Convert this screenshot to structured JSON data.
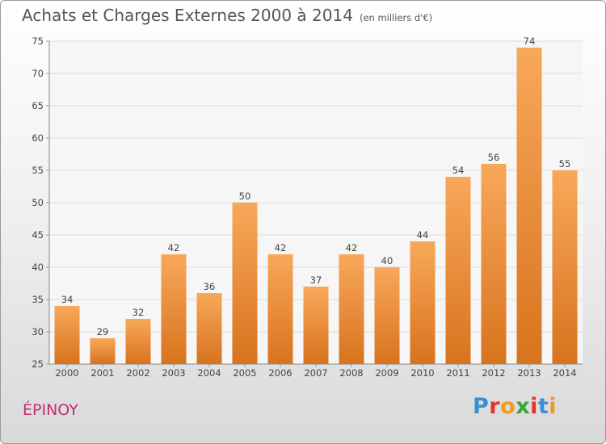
{
  "header": {
    "title": "Achats et Charges Externes 2000 à 2014",
    "unit": "(en milliers d'€)"
  },
  "footer": {
    "city": "ÉPINOY",
    "logo": "Proxiti"
  },
  "logo_letters": [
    {
      "ch": "P",
      "color": "#3a8fd0"
    },
    {
      "ch": "r",
      "color": "#e8322e"
    },
    {
      "ch": "o",
      "color": "#f29a1e"
    },
    {
      "ch": "x",
      "color": "#3aa635"
    },
    {
      "ch": "i",
      "color": "#e8322e"
    },
    {
      "ch": "t",
      "color": "#3a8fd0"
    },
    {
      "ch": "i",
      "color": "#f29a1e"
    }
  ],
  "chart_data": {
    "type": "bar",
    "title": "Achats et Charges Externes 2000 à 2014",
    "subtitle": "(en milliers d'€)",
    "xlabel": "",
    "ylabel": "",
    "categories": [
      "2000",
      "2001",
      "2002",
      "2003",
      "2004",
      "2005",
      "2006",
      "2007",
      "2008",
      "2009",
      "2010",
      "2011",
      "2012",
      "2013",
      "2014"
    ],
    "values": [
      34,
      29,
      32,
      42,
      36,
      50,
      42,
      37,
      42,
      40,
      44,
      54,
      56,
      74,
      55
    ],
    "ylim": [
      25,
      75
    ],
    "yticks": [
      25,
      30,
      35,
      40,
      45,
      50,
      55,
      60,
      65,
      70,
      75
    ],
    "grid": true,
    "bar_color": "#f0923a",
    "legend": "none"
  }
}
